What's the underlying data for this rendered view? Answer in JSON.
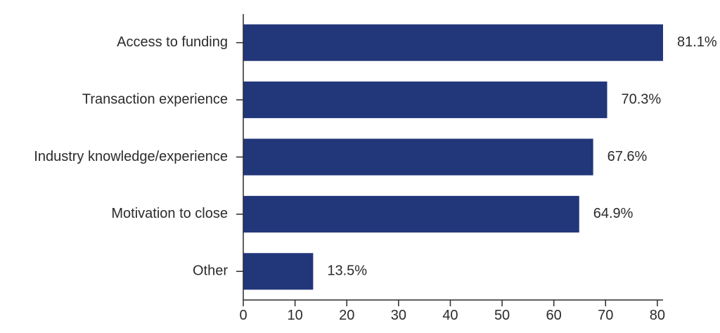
{
  "chart_data": {
    "type": "bar",
    "orientation": "horizontal",
    "categories": [
      "Access to funding",
      "Transaction experience",
      "Industry knowledge/experience",
      "Motivation to close",
      "Other"
    ],
    "values": [
      81.1,
      70.3,
      67.6,
      64.9,
      13.5
    ],
    "value_labels": [
      "81.1%",
      "70.3%",
      "67.6%",
      "64.9%",
      "13.5%"
    ],
    "xticks": [
      0,
      10,
      20,
      30,
      40,
      50,
      60,
      70,
      80
    ],
    "xlim": [
      0,
      81.1
    ],
    "title": "",
    "xlabel": "",
    "ylabel": "",
    "bar_color": "#22367a",
    "grid": false,
    "legend": "none"
  }
}
